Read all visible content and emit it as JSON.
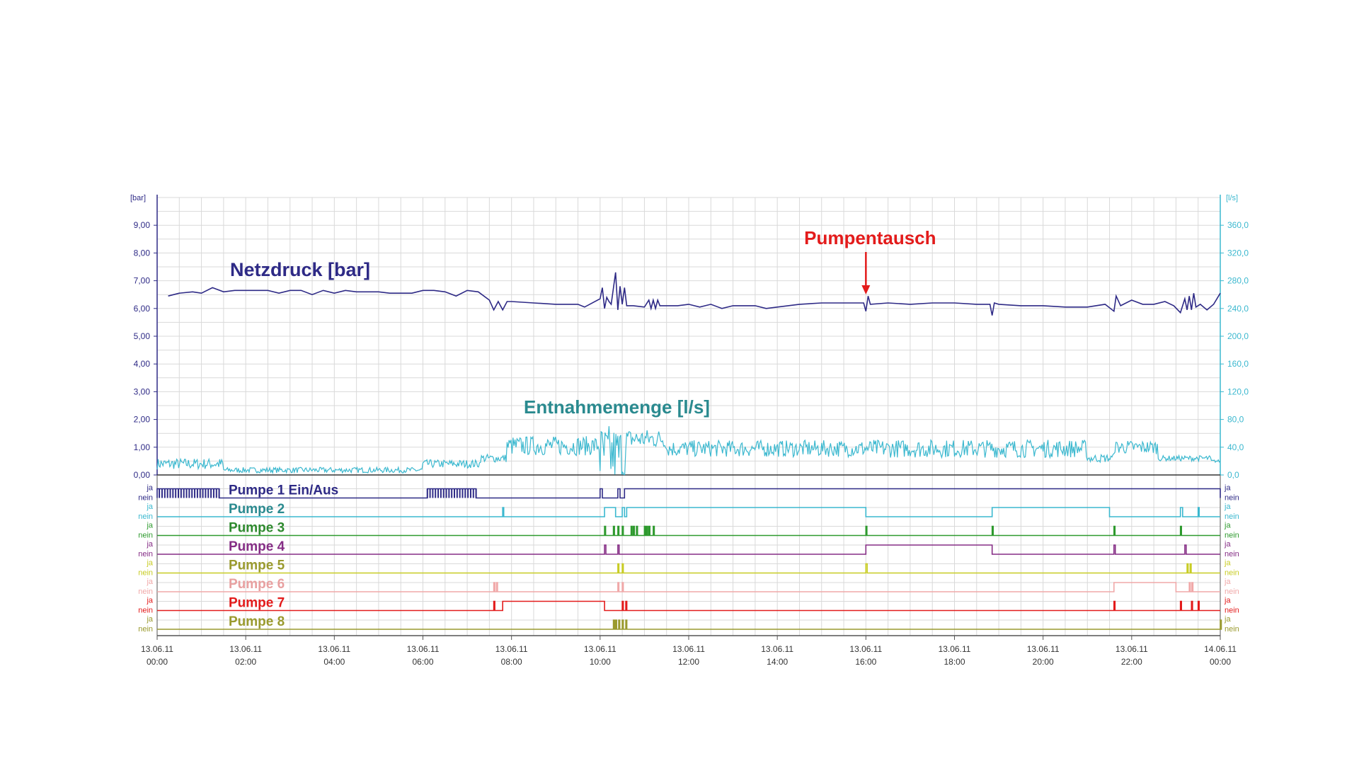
{
  "chart_data": {
    "type": "line",
    "x_ticks": [
      {
        "date": "13.06.11",
        "time": "00:00"
      },
      {
        "date": "13.06.11",
        "time": "02:00"
      },
      {
        "date": "13.06.11",
        "time": "04:00"
      },
      {
        "date": "13.06.11",
        "time": "06:00"
      },
      {
        "date": "13.06.11",
        "time": "08:00"
      },
      {
        "date": "13.06.11",
        "time": "10:00"
      },
      {
        "date": "13.06.11",
        "time": "12:00"
      },
      {
        "date": "13.06.11",
        "time": "14:00"
      },
      {
        "date": "13.06.11",
        "time": "16:00"
      },
      {
        "date": "13.06.11",
        "time": "18:00"
      },
      {
        "date": "13.06.11",
        "time": "20:00"
      },
      {
        "date": "13.06.11",
        "time": "22:00"
      },
      {
        "date": "14.06.11",
        "time": "00:00"
      }
    ],
    "xlim_hours": [
      0,
      24
    ],
    "grid": true,
    "left_axis": {
      "unit": "[bar]",
      "ylim": [
        0,
        10
      ],
      "ticks": [
        "0,00",
        "1,00",
        "2,00",
        "3,00",
        "4,00",
        "5,00",
        "6,00",
        "7,00",
        "8,00",
        "9,00"
      ],
      "color": "#2e2a86"
    },
    "right_axis": {
      "unit": "[l/s]",
      "ylim": [
        0,
        400
      ],
      "ticks": [
        "0,0",
        "40,0",
        "80,0",
        "120,0",
        "160,0",
        "200,0",
        "240,0",
        "280,0",
        "320,0",
        "360,0"
      ],
      "color": "#3bb8cf"
    },
    "series": [
      {
        "name": "Netzdruck  [bar]",
        "axis": "left",
        "color": "#2e2a86",
        "points": [
          [
            0.25,
            6.45
          ],
          [
            0.5,
            6.55
          ],
          [
            0.8,
            6.6
          ],
          [
            1.0,
            6.55
          ],
          [
            1.25,
            6.75
          ],
          [
            1.5,
            6.6
          ],
          [
            1.75,
            6.65
          ],
          [
            2.0,
            6.65
          ],
          [
            2.5,
            6.65
          ],
          [
            2.75,
            6.55
          ],
          [
            3.0,
            6.65
          ],
          [
            3.25,
            6.65
          ],
          [
            3.5,
            6.5
          ],
          [
            3.75,
            6.65
          ],
          [
            4.0,
            6.55
          ],
          [
            4.25,
            6.65
          ],
          [
            4.5,
            6.6
          ],
          [
            5.0,
            6.6
          ],
          [
            5.25,
            6.55
          ],
          [
            5.75,
            6.55
          ],
          [
            6.0,
            6.65
          ],
          [
            6.25,
            6.65
          ],
          [
            6.5,
            6.6
          ],
          [
            6.75,
            6.45
          ],
          [
            7.0,
            6.65
          ],
          [
            7.25,
            6.6
          ],
          [
            7.5,
            6.3
          ],
          [
            7.6,
            5.95
          ],
          [
            7.7,
            6.25
          ],
          [
            7.8,
            5.95
          ],
          [
            7.9,
            6.25
          ],
          [
            8.0,
            6.25
          ],
          [
            8.5,
            6.2
          ],
          [
            9.0,
            6.15
          ],
          [
            9.5,
            6.15
          ],
          [
            9.65,
            6.05
          ],
          [
            10.0,
            6.35
          ],
          [
            10.05,
            6.75
          ],
          [
            10.1,
            6.0
          ],
          [
            10.15,
            6.4
          ],
          [
            10.2,
            6.25
          ],
          [
            10.25,
            6.15
          ],
          [
            10.35,
            7.3
          ],
          [
            10.4,
            5.95
          ],
          [
            10.45,
            6.8
          ],
          [
            10.5,
            6.15
          ],
          [
            10.55,
            6.75
          ],
          [
            10.6,
            6.1
          ],
          [
            10.75,
            6.1
          ],
          [
            11.0,
            6.05
          ],
          [
            11.1,
            6.3
          ],
          [
            11.15,
            6.0
          ],
          [
            11.2,
            6.3
          ],
          [
            11.25,
            6.0
          ],
          [
            11.3,
            6.3
          ],
          [
            11.35,
            6.1
          ],
          [
            11.5,
            6.1
          ],
          [
            11.75,
            6.1
          ],
          [
            12.0,
            6.15
          ],
          [
            12.25,
            6.05
          ],
          [
            12.5,
            6.15
          ],
          [
            12.75,
            6.0
          ],
          [
            13.0,
            6.1
          ],
          [
            13.5,
            6.1
          ],
          [
            13.75,
            6.0
          ],
          [
            14.0,
            6.05
          ],
          [
            14.5,
            6.15
          ],
          [
            15.0,
            6.2
          ],
          [
            15.5,
            6.2
          ],
          [
            15.95,
            6.2
          ],
          [
            16.0,
            5.9
          ],
          [
            16.05,
            6.45
          ],
          [
            16.1,
            6.15
          ],
          [
            16.5,
            6.2
          ],
          [
            17.0,
            6.15
          ],
          [
            17.5,
            6.2
          ],
          [
            18.0,
            6.2
          ],
          [
            18.5,
            6.15
          ],
          [
            18.8,
            6.15
          ],
          [
            18.85,
            5.75
          ],
          [
            18.9,
            6.2
          ],
          [
            19.0,
            6.15
          ],
          [
            19.5,
            6.1
          ],
          [
            20.0,
            6.1
          ],
          [
            20.5,
            6.05
          ],
          [
            21.0,
            6.05
          ],
          [
            21.4,
            6.15
          ],
          [
            21.6,
            5.9
          ],
          [
            21.65,
            6.45
          ],
          [
            21.75,
            6.1
          ],
          [
            22.0,
            6.3
          ],
          [
            22.25,
            6.15
          ],
          [
            22.5,
            6.15
          ],
          [
            22.75,
            6.25
          ],
          [
            22.95,
            6.1
          ],
          [
            23.1,
            5.85
          ],
          [
            23.2,
            6.35
          ],
          [
            23.25,
            5.95
          ],
          [
            23.3,
            6.45
          ],
          [
            23.35,
            5.95
          ],
          [
            23.4,
            6.55
          ],
          [
            23.45,
            6.05
          ],
          [
            23.55,
            6.15
          ],
          [
            23.7,
            5.95
          ],
          [
            23.85,
            6.15
          ],
          [
            24.0,
            6.55
          ]
        ]
      },
      {
        "name": "Entnahmemenge [l/s]",
        "axis": "right",
        "color": "#3bb8cf",
        "segments": [
          {
            "from": 0.0,
            "to": 1.5,
            "mean": 16,
            "amp": 8
          },
          {
            "from": 1.5,
            "to": 6.0,
            "mean": 7,
            "amp": 4
          },
          {
            "from": 6.0,
            "to": 7.3,
            "mean": 16,
            "amp": 6
          },
          {
            "from": 7.3,
            "to": 7.9,
            "mean": 24,
            "amp": 6
          },
          {
            "from": 7.9,
            "to": 10.0,
            "mean": 42,
            "amp": 14
          },
          {
            "from": 10.0,
            "to": 10.6,
            "mean": 28,
            "amp": 45
          },
          {
            "from": 10.6,
            "to": 11.5,
            "mean": 52,
            "amp": 14
          },
          {
            "from": 11.5,
            "to": 16.0,
            "mean": 38,
            "amp": 12
          },
          {
            "from": 16.0,
            "to": 21.0,
            "mean": 38,
            "amp": 13
          },
          {
            "from": 21.0,
            "to": 21.6,
            "mean": 24,
            "amp": 6
          },
          {
            "from": 21.6,
            "to": 22.6,
            "mean": 40,
            "amp": 10
          },
          {
            "from": 22.6,
            "to": 23.8,
            "mean": 24,
            "amp": 4
          },
          {
            "from": 23.8,
            "to": 24.0,
            "mean": 20,
            "amp": 2
          }
        ]
      }
    ],
    "annotations": [
      {
        "text": "Pumpentausch",
        "x_hours": 16.0,
        "color": "#e31b1b"
      }
    ],
    "pumps_axis": {
      "on": "ja",
      "off": "nein"
    },
    "pumps": [
      {
        "name": "Pumpe 1 Ein/Aus",
        "color": "#2e2a86",
        "on": [
          [
            0.0,
            1.4
          ],
          [
            6.1,
            7.2
          ],
          [
            10.0,
            10.05
          ],
          [
            10.4,
            10.45
          ],
          [
            10.55,
            24.0
          ]
        ],
        "pulses": [
          [
            0.05,
            1.4,
            22
          ],
          [
            6.1,
            7.2,
            18
          ]
        ]
      },
      {
        "name": "Pumpe 2",
        "color": "#3bb8cf",
        "on": [
          [
            7.8,
            7.82
          ],
          [
            10.1,
            10.35
          ],
          [
            10.5,
            10.55
          ],
          [
            10.6,
            16.0
          ],
          [
            18.85,
            21.5
          ],
          [
            23.1,
            23.15
          ],
          [
            23.5,
            23.52
          ]
        ]
      },
      {
        "name": "Pumpe 3",
        "color": "#2e9a2e",
        "on": [
          [
            10.1,
            10.12
          ],
          [
            10.3,
            10.32
          ],
          [
            10.4,
            10.42
          ],
          [
            10.5,
            10.52
          ],
          [
            10.7,
            10.72
          ],
          [
            10.75,
            10.77
          ],
          [
            10.82,
            10.84
          ],
          [
            11.0,
            11.02
          ],
          [
            11.05,
            11.07
          ],
          [
            11.1,
            11.12
          ],
          [
            11.2,
            11.22
          ],
          [
            16.0,
            16.02
          ],
          [
            18.85,
            18.87
          ],
          [
            21.6,
            21.62
          ],
          [
            23.1,
            23.12
          ]
        ]
      },
      {
        "name": "Pumpe 4",
        "color": "#852d85",
        "on": [
          [
            10.1,
            10.13
          ],
          [
            10.4,
            10.43
          ],
          [
            16.0,
            18.85
          ],
          [
            21.6,
            21.63
          ],
          [
            23.2,
            23.23
          ]
        ]
      },
      {
        "name": "Pumpe 5",
        "color": "#c8cc24",
        "on": [
          [
            10.4,
            10.42
          ],
          [
            10.5,
            10.52
          ],
          [
            16.0,
            16.03
          ],
          [
            23.25,
            23.27
          ],
          [
            23.32,
            23.34
          ]
        ]
      },
      {
        "name": "Pumpe 6",
        "color": "#f0a8a8",
        "on": [
          [
            7.6,
            7.62
          ],
          [
            7.66,
            7.68
          ],
          [
            10.4,
            10.42
          ],
          [
            10.5,
            10.52
          ],
          [
            21.6,
            23.0
          ],
          [
            23.3,
            23.32
          ],
          [
            23.36,
            23.38
          ]
        ]
      },
      {
        "name": "Pumpe 7",
        "color": "#e31b1b",
        "on": [
          [
            7.6,
            7.62
          ],
          [
            7.8,
            10.1
          ],
          [
            10.5,
            10.52
          ],
          [
            10.58,
            10.6
          ],
          [
            21.6,
            21.62
          ],
          [
            23.1,
            23.12
          ],
          [
            23.35,
            23.37
          ],
          [
            23.5,
            23.52
          ]
        ]
      },
      {
        "name": "Pumpe 8",
        "color": "#9a9a2e",
        "on": [
          [
            10.3,
            10.32
          ],
          [
            10.35,
            10.37
          ],
          [
            10.42,
            10.44
          ],
          [
            10.5,
            10.52
          ],
          [
            10.58,
            10.6
          ],
          [
            24.0,
            24.0
          ]
        ]
      }
    ],
    "label_colors": {
      "Netzdruck  [bar]": "#2e2a86",
      "Entnahmemenge [l/s]": "#2a8a8f",
      "Pumpe 1 Ein/Aus": "#2e2a86",
      "Pumpe 2": "#2a8a8f",
      "Pumpe 3": "#2e8a2e",
      "Pumpe 4": "#852d85",
      "Pumpe 5": "#9a9a2e",
      "Pumpe 6": "#e8a0a0",
      "Pumpe 7": "#e31b1b",
      "Pumpe 8": "#9a9a2e"
    }
  }
}
